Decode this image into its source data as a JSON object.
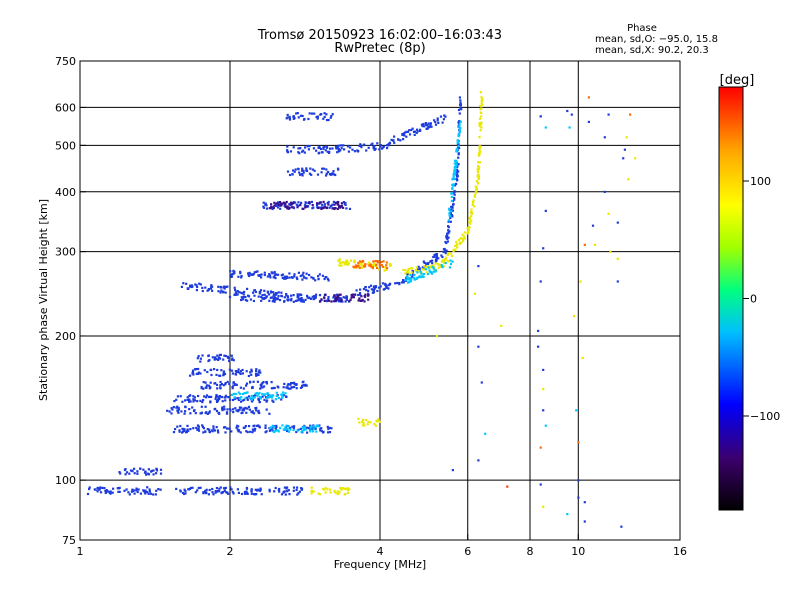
{
  "chart_data": {
    "type": "scatter",
    "title": "Tromsø 20150923 16:02:00–16:03:43",
    "subtitle": "RwPretec (8p)",
    "xlabel": "Frequency [MHz]",
    "ylabel": "Stationary phase Virtual Height [km]",
    "x_scale": "log",
    "y_scale": "log",
    "xlim": [
      1,
      16
    ],
    "ylim": [
      75,
      750
    ],
    "x_ticks": [
      1,
      2,
      4,
      6,
      8,
      10,
      16
    ],
    "x_tick_labels": [
      "1",
      "2",
      "4",
      "6",
      "8",
      "10",
      "16"
    ],
    "y_ticks": [
      75,
      100,
      200,
      300,
      400,
      500,
      600,
      750
    ],
    "y_tick_labels": [
      "75",
      "100",
      "200",
      "300",
      "400",
      "500",
      "600",
      "750"
    ],
    "x_grid": [
      2,
      4,
      6,
      8,
      10
    ],
    "y_grid": [
      100,
      200,
      300,
      400,
      500,
      600
    ],
    "grid": true,
    "stats": {
      "heading": "Phase",
      "line_o": "mean, sd,O: −95.0, 15.8",
      "line_x": "mean, sd,X:  90.2, 20.3"
    },
    "colorbar": {
      "title": "[deg]",
      "range": [
        -180,
        180
      ],
      "ticks": [
        100,
        0,
        -100
      ],
      "tick_labels": [
        "100",
        "0",
        "−100"
      ],
      "colors": [
        "#000000",
        "#3b006b",
        "#0000ff",
        "#00bfff",
        "#00ff7f",
        "#a0ff00",
        "#ffff00",
        "#ffa500",
        "#ff0000"
      ]
    },
    "series": [
      {
        "color": "#1e3cdc",
        "phase": -100,
        "segments": [
          [
            1.0,
            1.45,
            95,
            95
          ],
          [
            1.55,
            1.9,
            95,
            95
          ],
          [
            1.92,
            2.8,
            95,
            95
          ],
          [
            1.2,
            1.45,
            104,
            104
          ],
          [
            1.55,
            2.55,
            128,
            128
          ],
          [
            2.55,
            3.2,
            128,
            128
          ],
          [
            1.75,
            2.9,
            158,
            158
          ],
          [
            1.55,
            2.6,
            148,
            148
          ],
          [
            1.65,
            2.3,
            168,
            168
          ],
          [
            1.72,
            2.05,
            180,
            180
          ],
          [
            1.5,
            2.4,
            140,
            140
          ],
          [
            1.6,
            2.8,
            255,
            240
          ],
          [
            2.0,
            3.5,
            240,
            240
          ],
          [
            3.5,
            4.5,
            245,
            260
          ],
          [
            4.5,
            5.4,
            265,
            300
          ],
          [
            5.4,
            5.7,
            300,
            420
          ],
          [
            5.7,
            5.8,
            420,
            630
          ],
          [
            3.2,
            4.2,
            490,
            500
          ],
          [
            4.2,
            5.4,
            510,
            570
          ],
          [
            2.3,
            3.5,
            375,
            375
          ],
          [
            2.6,
            3.3,
            490,
            490
          ],
          [
            2.6,
            3.3,
            440,
            440
          ],
          [
            2.6,
            3.2,
            575,
            575
          ],
          [
            2.0,
            3.2,
            270,
            265
          ]
        ]
      },
      {
        "color": "#e8e800",
        "phase": 100,
        "segments": [
          [
            3.6,
            4.0,
            132,
            132
          ],
          [
            2.9,
            3.5,
            95,
            95
          ],
          [
            3.3,
            4.2,
            285,
            278
          ],
          [
            4.4,
            5.3,
            270,
            280
          ],
          [
            5.3,
            6.0,
            280,
            330
          ],
          [
            6.0,
            6.3,
            330,
            430
          ],
          [
            6.3,
            6.4,
            430,
            640
          ]
        ]
      },
      {
        "color": "#00c8ff",
        "phase": -30,
        "segments": [
          [
            2.4,
            3.0,
            128,
            128
          ],
          [
            4.5,
            5.6,
            262,
            285
          ],
          [
            5.5,
            5.8,
            350,
            560
          ],
          [
            2.0,
            2.6,
            150,
            150
          ]
        ]
      },
      {
        "color": "#3a0f8a",
        "phase": -140,
        "segments": [
          [
            2.4,
            3.4,
            375,
            375
          ],
          [
            3.0,
            3.8,
            240,
            240
          ]
        ]
      },
      {
        "color": "#ff6a00",
        "phase": 150,
        "segments": [
          [
            3.5,
            4.2,
            282,
            282
          ]
        ]
      }
    ],
    "scattered_points": [
      [
        6.3,
        190,
        "#1e3cdc"
      ],
      [
        6.4,
        160,
        "#1e3cdc"
      ],
      [
        6.5,
        125,
        "#00c8ff"
      ],
      [
        6.3,
        110,
        "#1e3cdc"
      ],
      [
        5.6,
        105,
        "#1e3cdc"
      ],
      [
        7.2,
        97,
        "#ff3c00"
      ],
      [
        6.2,
        245,
        "#e8e800"
      ],
      [
        6.3,
        280,
        "#1e3cdc"
      ],
      [
        5.2,
        200,
        "#e8e800"
      ],
      [
        7.0,
        210,
        "#e8e800"
      ],
      [
        8.4,
        575,
        "#ff6a00"
      ],
      [
        8.3,
        190,
        "#1e3cdc"
      ],
      [
        8.5,
        170,
        "#1e3cdc"
      ],
      [
        8.5,
        155,
        "#e8e800"
      ],
      [
        8.3,
        205,
        "#1e3cdc"
      ],
      [
        8.4,
        260,
        "#1e3cdc"
      ],
      [
        8.5,
        305,
        "#1e3cdc"
      ],
      [
        8.6,
        130,
        "#00c8ff"
      ],
      [
        8.4,
        117,
        "#ff6a00"
      ],
      [
        8.5,
        140,
        "#1e3cdc"
      ],
      [
        8.4,
        98,
        "#1e3cdc"
      ],
      [
        8.5,
        88,
        "#e8e800"
      ],
      [
        8.4,
        575,
        "#1e3cdc"
      ],
      [
        8.6,
        545,
        "#00c8ff"
      ],
      [
        8.6,
        365,
        "#1e3cdc"
      ],
      [
        9.5,
        590,
        "#1e3cdc"
      ],
      [
        9.6,
        545,
        "#00c8ff"
      ],
      [
        9.7,
        580,
        "#1e3cdc"
      ],
      [
        9.8,
        220,
        "#e8e800"
      ],
      [
        10.0,
        100,
        "#1e3cdc"
      ],
      [
        10.0,
        92,
        "#1e3cdc"
      ],
      [
        10.3,
        90,
        "#1e3cdc"
      ],
      [
        10.2,
        180,
        "#e8e800"
      ],
      [
        10.1,
        260,
        "#e8e800"
      ],
      [
        10.3,
        310,
        "#ff6a00"
      ],
      [
        9.9,
        140,
        "#00c8ff"
      ],
      [
        10.0,
        120,
        "#ff6a00"
      ],
      [
        10.5,
        630,
        "#ff6a00"
      ],
      [
        10.5,
        560,
        "#1e3cdc"
      ],
      [
        10.7,
        340,
        "#1e3cdc"
      ],
      [
        10.8,
        310,
        "#e8e800"
      ],
      [
        9.5,
        85,
        "#00c8ff"
      ],
      [
        10.3,
        82,
        "#1e3cdc"
      ],
      [
        11.5,
        580,
        "#1e3cdc"
      ],
      [
        11.3,
        520,
        "#1e3cdc"
      ],
      [
        11.3,
        400,
        "#1e3cdc"
      ],
      [
        11.5,
        360,
        "#e8e800"
      ],
      [
        11.6,
        300,
        "#e8e800"
      ],
      [
        12.0,
        260,
        "#1e3cdc"
      ],
      [
        12.5,
        520,
        "#e8e800"
      ],
      [
        12.7,
        580,
        "#ff6a00"
      ],
      [
        12.3,
        470,
        "#1e3cdc"
      ],
      [
        12.6,
        425,
        "#e8e800"
      ],
      [
        12.0,
        345,
        "#1e3cdc"
      ],
      [
        12.0,
        290,
        "#e8e800"
      ],
      [
        12.2,
        80,
        "#1e3cdc"
      ],
      [
        13.0,
        470,
        "#e8e800"
      ],
      [
        12.4,
        490,
        "#1e3cdc"
      ]
    ]
  }
}
